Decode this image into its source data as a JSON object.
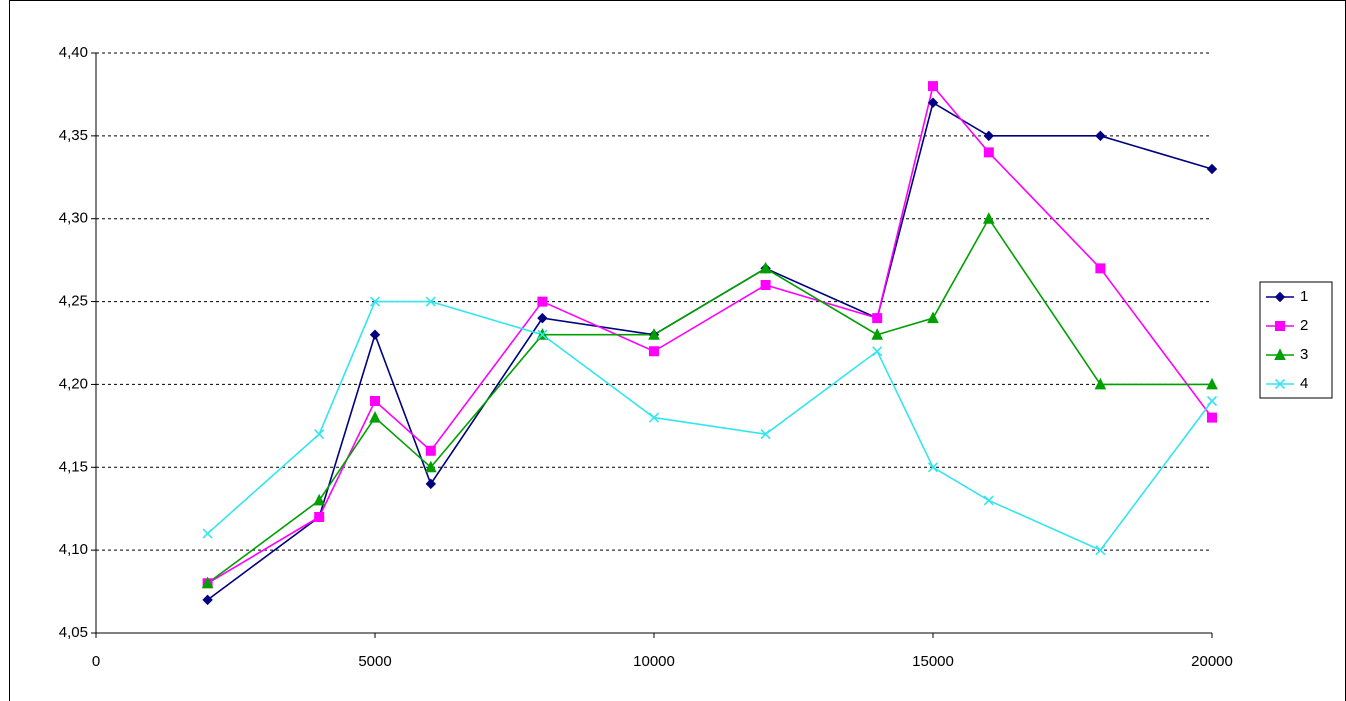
{
  "chart_data": {
    "type": "line",
    "x": [
      2000,
      4000,
      5000,
      6000,
      8000,
      10000,
      12000,
      14000,
      15000,
      16000,
      18000,
      20000
    ],
    "series": [
      {
        "name": "1",
        "color": "#000080",
        "marker": "diamond",
        "values": [
          4.07,
          4.12,
          4.23,
          4.14,
          4.24,
          4.23,
          4.27,
          4.24,
          4.37,
          4.35,
          4.35,
          4.33
        ]
      },
      {
        "name": "2",
        "color": "#ff00ff",
        "marker": "square",
        "values": [
          4.08,
          4.12,
          4.19,
          4.16,
          4.25,
          4.22,
          4.26,
          4.24,
          4.38,
          4.34,
          4.27,
          4.18
        ]
      },
      {
        "name": "3",
        "color": "#00a000",
        "marker": "triangle",
        "values": [
          4.08,
          4.13,
          4.18,
          4.15,
          4.23,
          4.23,
          4.27,
          4.23,
          4.24,
          4.3,
          4.2,
          4.2
        ]
      },
      {
        "name": "4",
        "color": "#33e6ee",
        "marker": "x",
        "values": [
          4.11,
          4.17,
          4.25,
          4.25,
          4.23,
          4.18,
          4.17,
          4.22,
          4.15,
          4.13,
          4.1,
          4.19
        ]
      }
    ],
    "xlim": [
      0,
      20000
    ],
    "xticks": [
      0,
      5000,
      10000,
      15000,
      20000
    ],
    "ylim": [
      4.05,
      4.4
    ],
    "yticks": [
      {
        "value": 4.05,
        "label": "4,05"
      },
      {
        "value": 4.1,
        "label": "4,10"
      },
      {
        "value": 4.15,
        "label": "4,15"
      },
      {
        "value": 4.2,
        "label": "4,20"
      },
      {
        "value": 4.25,
        "label": "4,25"
      },
      {
        "value": 4.3,
        "label": "4,30"
      },
      {
        "value": 4.35,
        "label": "4,35"
      },
      {
        "value": 4.4,
        "label": "4,40"
      }
    ],
    "grid": true,
    "legend": "right"
  }
}
